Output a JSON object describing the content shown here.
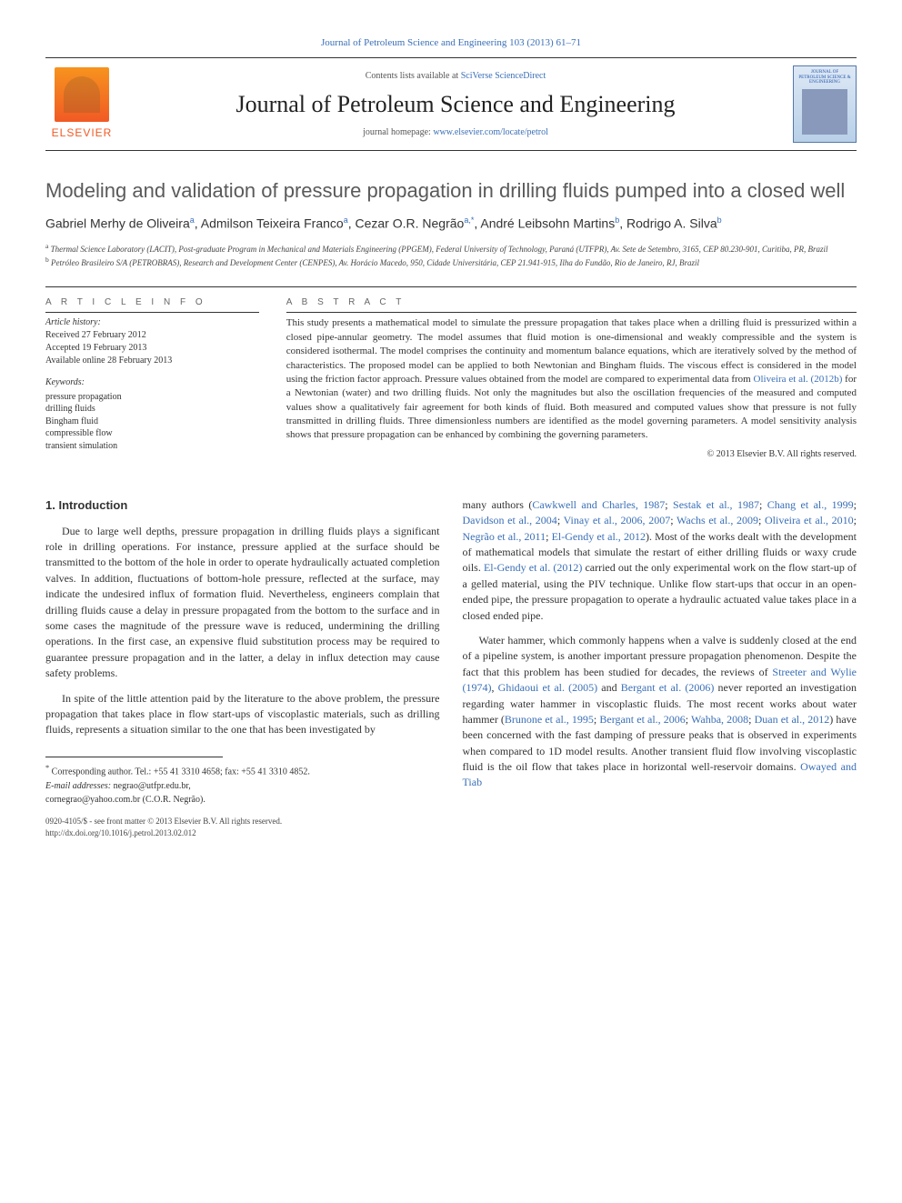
{
  "topLink": "Journal of Petroleum Science and Engineering 103 (2013) 61–71",
  "header": {
    "contentsPrefix": "Contents lists available at ",
    "contentsLink": "SciVerse ScienceDirect",
    "journalName": "Journal of Petroleum Science and Engineering",
    "homepagePrefix": "journal homepage: ",
    "homepageLink": "www.elsevier.com/locate/petrol",
    "elsevierLabel": "ELSEVIER",
    "coverTitle": "JOURNAL OF PETROLEUM SCIENCE & ENGINEERING"
  },
  "title": "Modeling and validation of pressure propagation in drilling fluids pumped into a closed well",
  "authors": {
    "list": "Gabriel Merhy de Oliveira",
    "a1sup": "a",
    "a2": ", Admilson Teixeira Franco",
    "a2sup": "a",
    "a3": ", Cezar O.R. Negrão",
    "a3sup": "a,",
    "corrMark": "*",
    "a4": ", André Leibsohn Martins",
    "a4sup": "b",
    "a5": ", Rodrigo A. Silva",
    "a5sup": "b"
  },
  "affiliations": {
    "aSup": "a",
    "a": " Thermal Science Laboratory (LACIT), Post-graduate Program in Mechanical and Materials Engineering (PPGEM), Federal University of Technology, Paraná (UTFPR), Av. Sete de Setembro, 3165, CEP 80.230-901, Curitiba, PR, Brazil",
    "bSup": "b",
    "b": " Petróleo Brasileiro S/A (PETROBRAS), Research and Development Center (CENPES), Av. Horácio Macedo, 950, Cidade Universitária, CEP 21.941-915, Ilha do Fundão, Rio de Janeiro, RJ, Brazil"
  },
  "articleInfo": {
    "heading": "A R T I C L E   I N F O",
    "historyLabel": "Article history:",
    "received": "Received 27 February 2012",
    "accepted": "Accepted 19 February 2013",
    "online": "Available online 28 February 2013",
    "keywordsLabel": "Keywords:",
    "keywords": [
      "pressure propagation",
      "drilling fluids",
      "Bingham fluid",
      "compressible flow",
      "transient simulation"
    ]
  },
  "abstract": {
    "heading": "A B S T R A C T",
    "text1": "This study presents a mathematical model to simulate the pressure propagation that takes place when a drilling fluid is pressurized within a closed pipe-annular geometry. The model assumes that fluid motion is one-dimensional and weakly compressible and the system is considered isothermal. The model comprises the continuity and momentum balance equations, which are iteratively solved by the method of characteristics. The proposed model can be applied to both Newtonian and Bingham fluids. The viscous effect is considered in the model using the friction factor approach. Pressure values obtained from the model are compared to experimental data from ",
    "cite1": "Oliveira et al. (2012b)",
    "text2": " for a Newtonian (water) and two drilling fluids. Not only the magnitudes but also the oscillation frequencies of the measured and computed values show a qualitatively fair agreement for both kinds of fluid. Both measured and computed values show that pressure is not fully transmitted in drilling fluids. Three dimensionless numbers are identified as the model governing parameters. A model sensitivity analysis shows that pressure propagation can be enhanced by combining the governing parameters.",
    "copyright": "© 2013 Elsevier B.V. All rights reserved."
  },
  "body": {
    "introHeading": "1. Introduction",
    "p1": "Due to large well depths, pressure propagation in drilling fluids plays a significant role in drilling operations. For instance, pressure applied at the surface should be transmitted to the bottom of the hole in order to operate hydraulically actuated completion valves. In addition, fluctuations of bottom-hole pressure, reflected at the surface, may indicate the undesired influx of formation fluid. Nevertheless, engineers complain that drilling fluids cause a delay in pressure propagated from the bottom to the surface and in some cases the magnitude of the pressure wave is reduced, undermining the drilling operations. In the first case, an expensive fluid substitution process may be required to guarantee pressure propagation and in the latter, a delay in influx detection may cause safety problems.",
    "p2": "In spite of the little attention paid by the literature to the above problem, the pressure propagation that takes place in flow start-ups of viscoplastic materials, such as drilling fluids, represents a situation similar to the one that has been investigated by",
    "p3a": "many authors (",
    "cites1": "Cawkwell and Charles, 1987",
    "sep1": "; ",
    "cites2": "Sestak et al., 1987",
    "sep2": "; ",
    "cites3": "Chang et al., 1999",
    "sep3": "; ",
    "cites4": "Davidson et al., 2004",
    "sep4": "; ",
    "cites5": "Vinay et al., 2006, 2007",
    "sep5": "; ",
    "cites6": "Wachs et al., 2009",
    "sep6": "; ",
    "cites7": "Oliveira et al., 2010",
    "sep7": "; ",
    "cites8": "Negrão et al., 2011",
    "sep8": "; ",
    "cites9": "El-Gendy et al., 2012",
    "p3b": "). Most of the works dealt with the development of mathematical models that simulate the restart of either drilling fluids or waxy crude oils. ",
    "cites10": "El-Gendy et al. (2012)",
    "p3c": " carried out the only experimental work on the flow start-up of a gelled material, using the PIV technique. Unlike flow start-ups that occur in an open-ended pipe, the pressure propagation to operate a hydraulic actuated value takes place in a closed ended pipe.",
    "p4a": "Water hammer, which commonly happens when a valve is suddenly closed at the end of a pipeline system, is another important pressure propagation phenomenon. Despite the fact that this problem has been studied for decades, the reviews of ",
    "cites11": "Streeter and Wylie (1974)",
    "p4b": ", ",
    "cites12": "Ghidaoui et al. (2005)",
    "p4c": " and ",
    "cites13": "Bergant et al. (2006)",
    "p4d": " never reported an investigation regarding water hammer in viscoplastic fluids. The most recent works about water hammer (",
    "cites14": "Brunone et al., 1995",
    "p4e": "; ",
    "cites15": "Bergant et al., 2006",
    "p4f": "; ",
    "cites16": "Wahba, 2008",
    "p4g": "; ",
    "cites17": "Duan et al., 2012",
    "p4h": ") have been concerned with the fast damping of pressure peaks that is observed in experiments when compared to 1D model results. Another transient fluid flow involving viscoplastic fluid is the oil flow that takes place in horizontal well-reservoir domains. ",
    "cites18": "Owayed and Tiab"
  },
  "footnotes": {
    "corrMark": "*",
    "corr": " Corresponding author. Tel.: +55 41 3310 4658; fax: +55 41 3310 4852.",
    "emailLabel": "E-mail addresses:",
    "email1": " negrao@utfpr.edu.br,",
    "email2": "cornegrao@yahoo.com.br (C.O.R. Negrão)."
  },
  "footerMeta": {
    "line1": "0920-4105/$ - see front matter © 2013 Elsevier B.V. All rights reserved.",
    "line2": "http://dx.doi.org/10.1016/j.petrol.2013.02.012"
  },
  "colors": {
    "link": "#3a6fb7",
    "titleGray": "#5a5a5a",
    "elsevierOrange": "#f15a24"
  }
}
